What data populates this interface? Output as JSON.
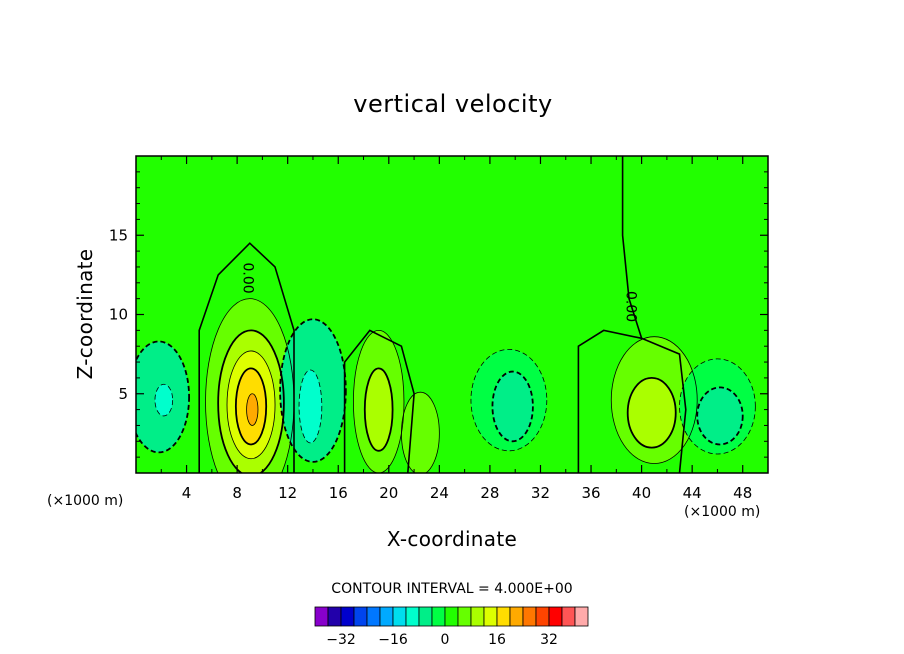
{
  "chart_data": {
    "type": "heatmap",
    "subtype": "filled-contour",
    "title": "vertical velocity",
    "xlabel": "X-coordinate",
    "ylabel": "Z-coordinate",
    "x_unit_left": "(×1000 m)",
    "x_unit_right": "(×1000 m)",
    "xlim": [
      0,
      50
    ],
    "ylim": [
      0,
      20
    ],
    "xticks": [
      "4",
      "8",
      "12",
      "16",
      "20",
      "24",
      "28",
      "32",
      "36",
      "40",
      "44",
      "48"
    ],
    "yticks": [
      "5",
      "10",
      "15"
    ],
    "contour_interval_text": "CONTOUR INTERVAL = 4.000E+00",
    "contour_label": "0.00",
    "background_level": 0,
    "features": [
      {
        "x": 1.8,
        "z": 4.8,
        "rx": 2.4,
        "rz": 3.5,
        "value": -8
      },
      {
        "x": 2.2,
        "z": 4.6,
        "rx": 0.7,
        "rz": 1.0,
        "value": -12
      },
      {
        "x": 9.0,
        "z": 4.5,
        "rx": 3.5,
        "rz": 6.5,
        "value": 4
      },
      {
        "x": 9.1,
        "z": 4.4,
        "rx": 2.6,
        "rz": 4.6,
        "value": 8
      },
      {
        "x": 9.1,
        "z": 4.3,
        "rx": 1.9,
        "rz": 3.4,
        "value": 12
      },
      {
        "x": 9.1,
        "z": 4.2,
        "rx": 1.2,
        "rz": 2.4,
        "value": 16
      },
      {
        "x": 9.2,
        "z": 4.0,
        "rx": 0.45,
        "rz": 1.0,
        "value": 20
      },
      {
        "x": 14.0,
        "z": 5.2,
        "rx": 2.6,
        "rz": 4.5,
        "value": -8
      },
      {
        "x": 13.8,
        "z": 4.2,
        "rx": 0.9,
        "rz": 2.3,
        "value": -12
      },
      {
        "x": 19.2,
        "z": 4.5,
        "rx": 2.0,
        "rz": 4.5,
        "value": 4
      },
      {
        "x": 19.2,
        "z": 4.0,
        "rx": 1.1,
        "rz": 2.6,
        "value": 8
      },
      {
        "x": 22.5,
        "z": 2.5,
        "rx": 1.5,
        "rz": 2.6,
        "value": 4
      },
      {
        "x": 29.5,
        "z": 4.6,
        "rx": 3.0,
        "rz": 3.2,
        "value": -4
      },
      {
        "x": 29.8,
        "z": 4.2,
        "rx": 1.6,
        "rz": 2.2,
        "value": -8
      },
      {
        "x": 41.0,
        "z": 4.6,
        "rx": 3.4,
        "rz": 4.0,
        "value": 4
      },
      {
        "x": 40.8,
        "z": 3.8,
        "rx": 1.9,
        "rz": 2.2,
        "value": 8
      },
      {
        "x": 46.0,
        "z": 4.2,
        "rx": 3.0,
        "rz": 3.0,
        "value": -4
      },
      {
        "x": 46.2,
        "z": 3.6,
        "rx": 1.8,
        "rz": 1.8,
        "value": -8
      }
    ],
    "colorbar": {
      "levels": [
        -36,
        -32,
        -28,
        -24,
        -20,
        -16,
        -12,
        -8,
        -4,
        0,
        4,
        8,
        12,
        16,
        20,
        24,
        28,
        32,
        36
      ],
      "tick_labels": [
        "−32",
        "−16",
        "0",
        "16",
        "32"
      ],
      "tick_values": [
        -32,
        -16,
        0,
        16,
        32
      ],
      "colors": [
        "#8800cc",
        "#2200aa",
        "#0000cc",
        "#0044ee",
        "#0077ff",
        "#00aaff",
        "#00ddee",
        "#00ffcc",
        "#00ee88",
        "#00ff44",
        "#22ff00",
        "#66ff00",
        "#aaff00",
        "#ddff00",
        "#ffdd00",
        "#ffaa00",
        "#ff7700",
        "#ff4400",
        "#ff0000",
        "#ff5555",
        "#ffaaaa"
      ]
    }
  }
}
